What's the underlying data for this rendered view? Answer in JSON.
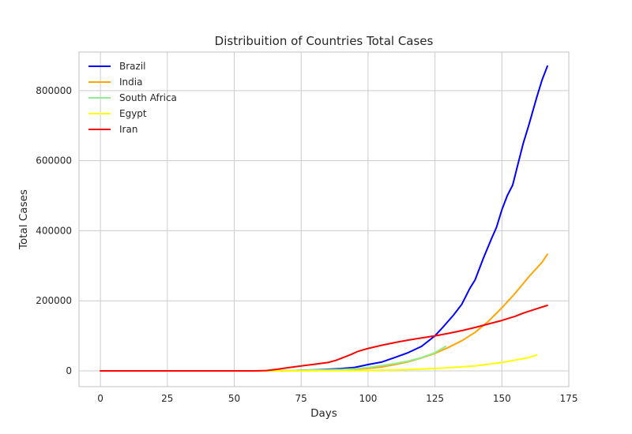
{
  "chart_data": {
    "type": "line",
    "title": "Distribuition of Countries Total Cases",
    "xlabel": "Days",
    "ylabel": "Total Cases",
    "xlim": [
      -8,
      175
    ],
    "ylim": [
      -45000,
      910000
    ],
    "xticks": [
      0,
      25,
      50,
      75,
      100,
      125,
      150,
      175
    ],
    "xtick_labels": [
      "0",
      "25",
      "50",
      "75",
      "100",
      "125",
      "150",
      "175"
    ],
    "yticks": [
      0,
      200000,
      400000,
      600000,
      800000
    ],
    "ytick_labels": [
      "0",
      "200000",
      "400000",
      "600000",
      "800000"
    ],
    "grid": true,
    "legend": "top-left",
    "series": [
      {
        "name": "Brazil",
        "color": "#0000ff",
        "x": [
          0,
          60,
          70,
          80,
          90,
          95,
          100,
          105,
          110,
          115,
          120,
          125,
          128,
          132,
          135,
          138,
          140,
          143,
          146,
          148,
          150,
          152,
          154,
          156,
          158,
          160,
          163,
          165,
          167
        ],
        "y": [
          0,
          0,
          500,
          3000,
          6500,
          10000,
          18000,
          25000,
          38000,
          52000,
          70000,
          100000,
          125000,
          160000,
          190000,
          235000,
          260000,
          320000,
          375000,
          410000,
          460000,
          500000,
          530000,
          590000,
          650000,
          700000,
          780000,
          830000,
          870000
        ]
      },
      {
        "name": "India",
        "color": "#ffa500",
        "x": [
          0,
          60,
          70,
          80,
          90,
          95,
          100,
          105,
          110,
          115,
          120,
          125,
          130,
          135,
          140,
          145,
          150,
          155,
          160,
          165,
          167
        ],
        "y": [
          0,
          0,
          200,
          1500,
          3000,
          4500,
          7000,
          11000,
          18000,
          26000,
          37000,
          50000,
          67000,
          86000,
          110000,
          142000,
          180000,
          222000,
          268000,
          310000,
          333000
        ]
      },
      {
        "name": "South Africa",
        "color": "#90ee90",
        "x": [
          0,
          60,
          70,
          80,
          90,
          95,
          100,
          105,
          110,
          115,
          120,
          125,
          129
        ],
        "y": [
          0,
          0,
          1000,
          2500,
          4000,
          6000,
          10000,
          15000,
          21000,
          28000,
          38000,
          52000,
          70000
        ]
      },
      {
        "name": "Egypt",
        "color": "#ffff00",
        "x": [
          0,
          60,
          80,
          100,
          110,
          120,
          130,
          140,
          150,
          155,
          160,
          163
        ],
        "y": [
          0,
          0,
          200,
          1000,
          2500,
          5000,
          9000,
          14000,
          24000,
          31000,
          38000,
          45000
        ]
      },
      {
        "name": "Iran",
        "color": "#ff0000",
        "x": [
          0,
          58,
          62,
          66,
          70,
          75,
          80,
          85,
          88,
          92,
          94,
          96,
          100,
          105,
          110,
          115,
          120,
          125,
          130,
          135,
          140,
          145,
          150,
          155,
          158,
          162,
          167
        ],
        "y": [
          0,
          0,
          1000,
          4500,
          9000,
          14000,
          19000,
          24000,
          30000,
          42000,
          48000,
          55000,
          64000,
          73000,
          81000,
          88000,
          94000,
          100000,
          107000,
          115000,
          124000,
          134000,
          144000,
          156000,
          165000,
          175000,
          187000
        ]
      }
    ]
  }
}
